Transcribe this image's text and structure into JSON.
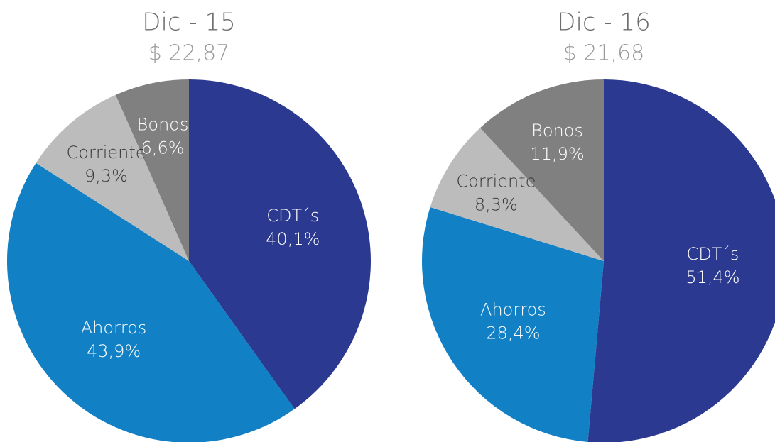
{
  "chart_data": [
    {
      "type": "pie",
      "title": "Dic - 15",
      "subtitle": "$ 22,87",
      "categories": [
        "CDT´s",
        "Ahorros",
        "Corriente",
        "Bonos"
      ],
      "values": [
        40.1,
        43.9,
        9.3,
        6.6
      ],
      "value_labels": [
        "40,1%",
        "43,9%",
        "9,3%",
        "6,6%"
      ],
      "colors": [
        "#2b3990",
        "#1180c4",
        "#bcbcbc",
        "#808080"
      ]
    },
    {
      "type": "pie",
      "title": "Dic - 16",
      "subtitle": "$ 21,68",
      "categories": [
        "CDT´s",
        "Ahorros",
        "Corriente",
        "Bonos"
      ],
      "values": [
        51.4,
        28.4,
        8.3,
        11.9
      ],
      "value_labels": [
        "51,4%",
        "28,4%",
        "8,3%",
        "11,9%"
      ],
      "colors": [
        "#2b3990",
        "#1180c4",
        "#bcbcbc",
        "#808080"
      ]
    }
  ]
}
